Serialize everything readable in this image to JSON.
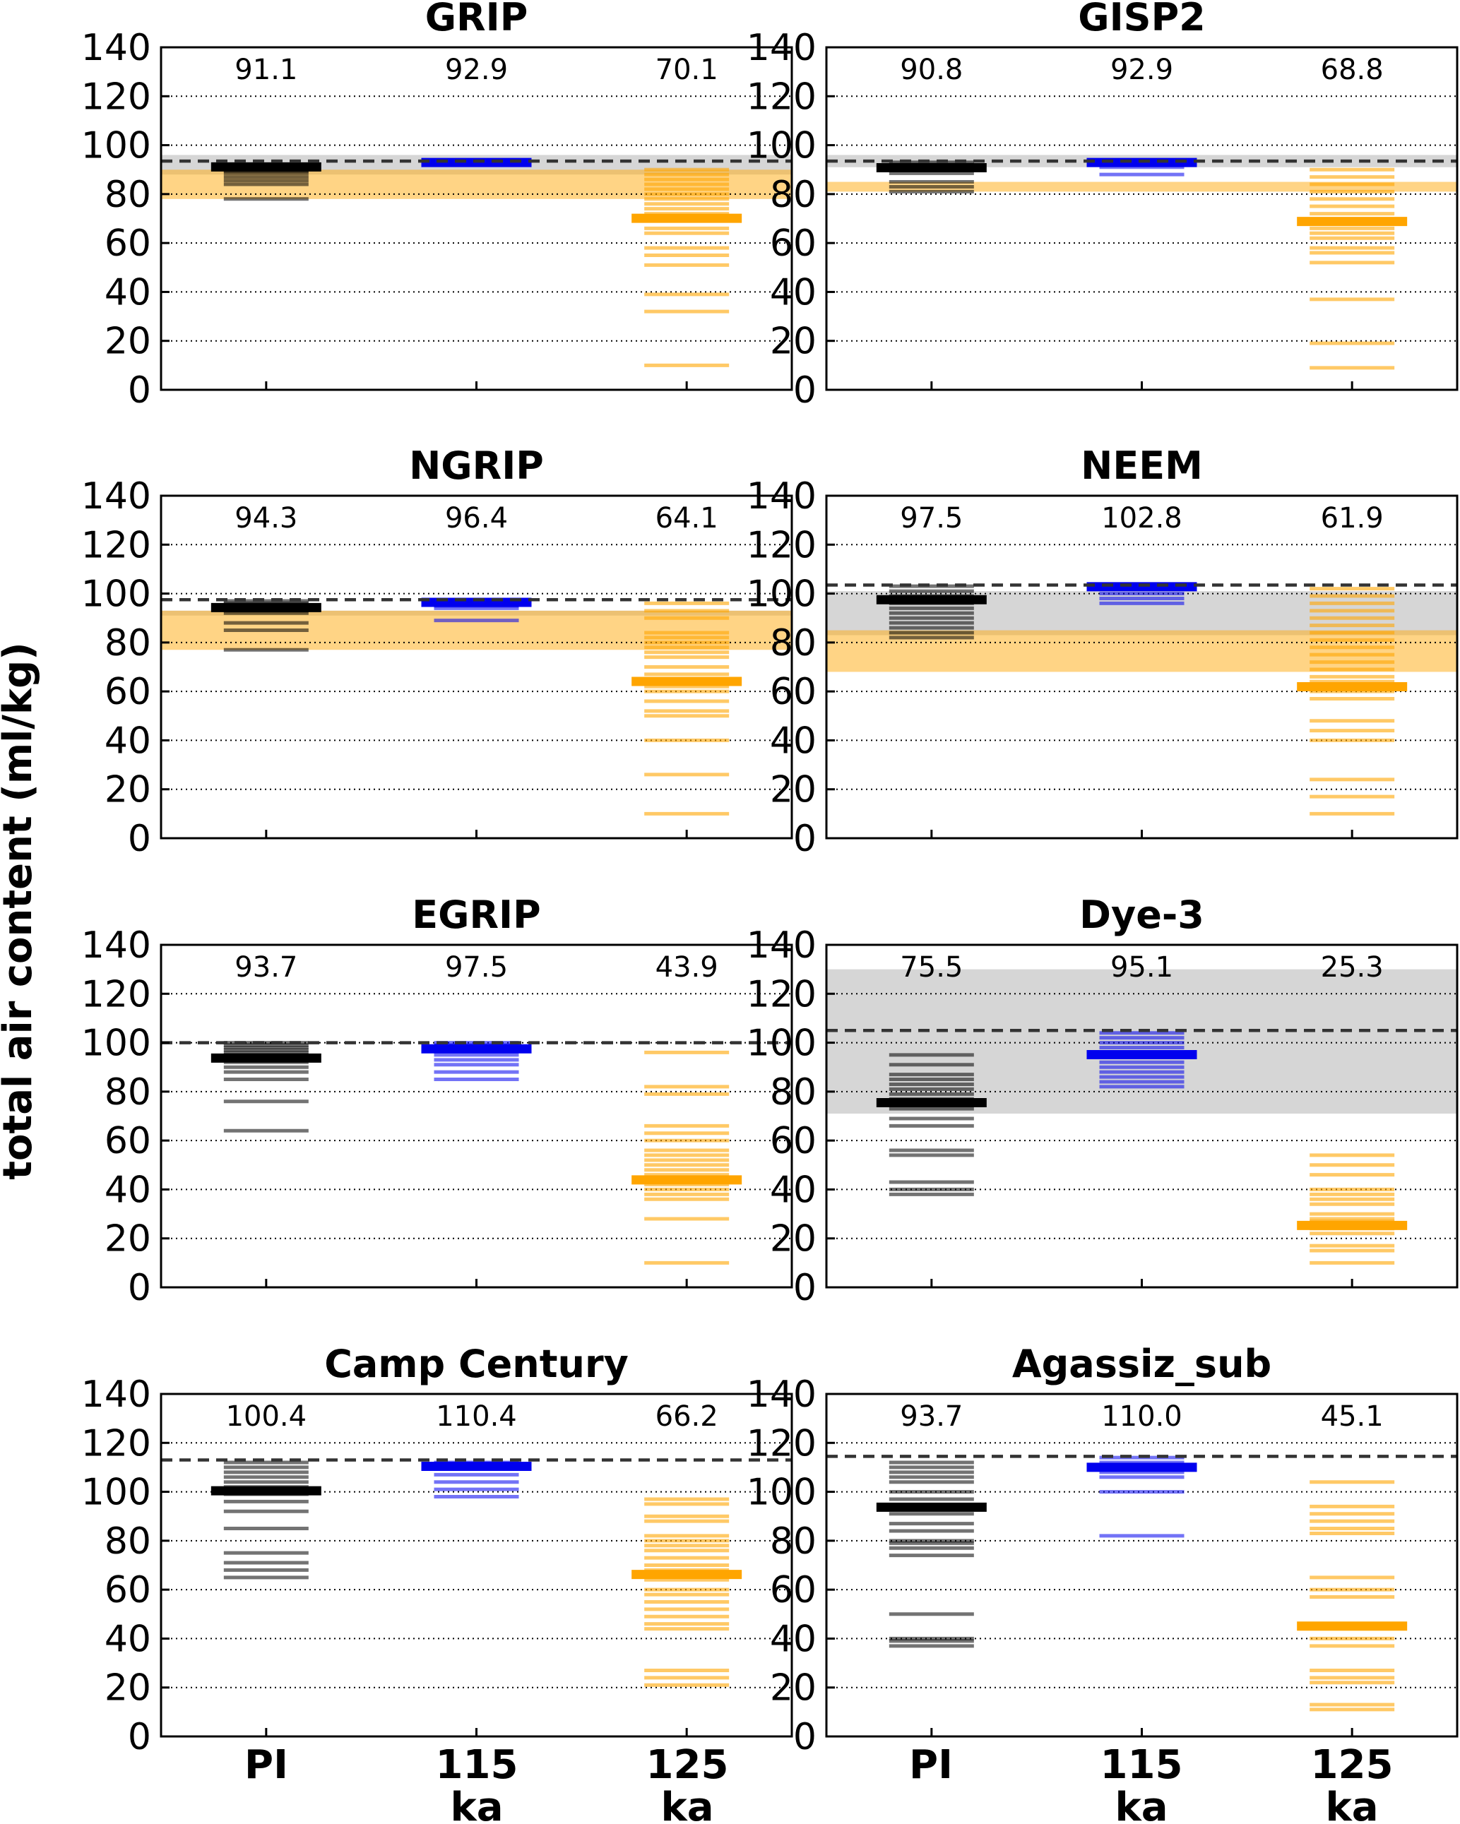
{
  "chart_data": {
    "type": "strip",
    "ylabel": "total air content (ml/kg)",
    "ylim": [
      0,
      140
    ],
    "yticks": [
      0,
      20,
      40,
      60,
      80,
      100,
      120,
      140
    ],
    "gridlines": [
      20,
      40,
      60,
      80,
      100,
      120
    ],
    "categories": [
      {
        "line1": "PI",
        "line2": ""
      },
      {
        "line1": "115",
        "line2": "ka"
      },
      {
        "line1": "125",
        "line2": "ka"
      }
    ],
    "colors": {
      "PI": "#000000",
      "115ka": "#0000ee",
      "125ka": "#ffa500",
      "obs_band": "#b4b4b4",
      "lig_band": "#ffb020"
    },
    "panels": [
      {
        "title": "GRIP",
        "observed": 93.5,
        "obs_band": [
          88,
          96
        ],
        "lig_band": [
          78,
          90
        ],
        "means": [
          91.1,
          92.9,
          70.1
        ],
        "series": [
          {
            "name": "PI",
            "mean": 91.1,
            "members": [
              91.5,
              90.5,
              89.5,
              88.5,
              87,
              85.5,
              84,
              78
            ]
          },
          {
            "name": "115 ka",
            "mean": 92.9,
            "members": [
              93.5,
              93,
              92.5,
              92
            ]
          },
          {
            "name": "125 ka",
            "mean": 70.1,
            "members": [
              90,
              88,
              86,
              84,
              82,
              80,
              78,
              76,
              74,
              72,
              66,
              64,
              58,
              55,
              51,
              39,
              32,
              10
            ]
          }
        ]
      },
      {
        "title": "GISP2",
        "observed": 93.5,
        "obs_band": [
          91,
          96
        ],
        "lig_band": [
          81,
          85
        ],
        "means": [
          90.8,
          92.9,
          68.8
        ],
        "series": [
          {
            "name": "PI",
            "mean": 90.8,
            "members": [
              93,
              92,
              91.5,
              90,
              88.5,
              85,
              83,
              81
            ]
          },
          {
            "name": "115 ka",
            "mean": 92.9,
            "members": [
              93.5,
              93,
              92,
              91,
              88
            ]
          },
          {
            "name": "125 ka",
            "mean": 68.8,
            "members": [
              90,
              87,
              84,
              81,
              78,
              75,
              72,
              66,
              64,
              62,
              58,
              56,
              52,
              37,
              19,
              9
            ]
          }
        ]
      },
      {
        "title": "NGRIP",
        "observed": 97.5,
        "obs_band": [
          91,
          93
        ],
        "lig_band": [
          77,
          93
        ],
        "means": [
          94.3,
          96.4,
          64.1
        ],
        "series": [
          {
            "name": "PI",
            "mean": 94.3,
            "members": [
              97,
              96,
              95,
              93,
              92,
              88,
              85,
              77
            ]
          },
          {
            "name": "115 ka",
            "mean": 96.4,
            "members": [
              97,
              96,
              95,
              94,
              89
            ]
          },
          {
            "name": "125 ka",
            "mean": 64.1,
            "members": [
              96,
              93,
              90,
              84,
              82,
              80,
              78,
              76,
              74,
              70,
              67,
              62,
              60,
              56,
              52,
              50,
              40,
              26,
              10
            ]
          }
        ]
      },
      {
        "title": "NEEM",
        "observed": 103.5,
        "obs_band": [
          83,
          101
        ],
        "lig_band": [
          68,
          85
        ],
        "means": [
          97.5,
          102.8,
          61.9
        ],
        "series": [
          {
            "name": "PI",
            "mean": 97.5,
            "members": [
              103,
              101,
              99,
              96,
              94,
              92,
              90,
              88,
              86,
              84,
              82
            ]
          },
          {
            "name": "115 ka",
            "mean": 102.8,
            "members": [
              103.5,
              102,
              100,
              98,
              96
            ]
          },
          {
            "name": "125 ka",
            "mean": 61.9,
            "members": [
              102,
              99,
              96,
              93,
              90,
              87,
              84,
              81,
              78,
              75,
              72,
              69,
              66,
              64,
              60,
              57,
              48,
              44,
              40,
              24,
              17,
              10
            ]
          }
        ]
      },
      {
        "title": "EGRIP",
        "observed": 100,
        "obs_band": null,
        "lig_band": null,
        "means": [
          93.7,
          97.5,
          43.9
        ],
        "series": [
          {
            "name": "PI",
            "mean": 93.7,
            "members": [
              100,
              99,
              98,
              97,
              96,
              95,
              94,
              92,
              90,
              88,
              85,
              76,
              64
            ]
          },
          {
            "name": "115 ka",
            "mean": 97.5,
            "members": [
              100,
              99,
              98,
              97,
              95,
              93,
              91,
              88,
              85
            ]
          },
          {
            "name": "125 ka",
            "mean": 43.9,
            "members": [
              96,
              82,
              79,
              66,
              63,
              60,
              56,
              54,
              52,
              50,
              48,
              46,
              42,
              40,
              38,
              36,
              28,
              10
            ]
          }
        ]
      },
      {
        "title": "Dye-3",
        "observed": 105,
        "obs_band": [
          71,
          130
        ],
        "lig_band": null,
        "means": [
          75.5,
          95.1,
          25.3
        ],
        "series": [
          {
            "name": "PI",
            "mean": 75.5,
            "members": [
              95,
              91,
              87,
              85,
              83,
              81,
              79,
              77,
              73,
              69,
              66,
              56,
              54,
              43,
              40,
              38
            ]
          },
          {
            "name": "115 ka",
            "mean": 95.1,
            "members": [
              104,
              102,
              100,
              98,
              96,
              94,
              92,
              90,
              88,
              86,
              84,
              82
            ]
          },
          {
            "name": "125 ka",
            "mean": 25.3,
            "members": [
              54,
              50,
              46,
              40,
              38,
              36,
              34,
              30,
              28,
              27,
              24,
              22,
              17,
              15,
              10
            ]
          }
        ]
      },
      {
        "title": "Camp Century",
        "observed": 113,
        "obs_band": null,
        "lig_band": null,
        "means": [
          100.4,
          110.4,
          66.2
        ],
        "series": [
          {
            "name": "PI",
            "mean": 100.4,
            "members": [
              112,
              110,
              108,
              106,
              104,
              102,
              99,
              96,
              92,
              85,
              75,
              71,
              68,
              65
            ]
          },
          {
            "name": "115 ka",
            "mean": 110.4,
            "members": [
              112,
              110,
              107,
              104,
              101,
              98
            ]
          },
          {
            "name": "125 ka",
            "mean": 66.2,
            "members": [
              97,
              95,
              90,
              88,
              82,
              80,
              78,
              76,
              73,
              70,
              68,
              64,
              60,
              58,
              55,
              52,
              49,
              46,
              44,
              27,
              24,
              21
            ]
          }
        ]
      },
      {
        "title": "Agassiz_sub",
        "observed": 114.5,
        "obs_band": null,
        "lig_band": null,
        "means": [
          93.7,
          110.0,
          45.1
        ],
        "series": [
          {
            "name": "PI",
            "mean": 93.7,
            "members": [
              112,
              110,
              108,
              106,
              104,
              100,
              97,
              91,
              87,
              84,
              80,
              79,
              77,
              74,
              50,
              40,
              39,
              37
            ]
          },
          {
            "name": "115 ka",
            "mean": 110.0,
            "members": [
              114,
              112,
              110,
              108,
              106,
              100,
              82
            ]
          },
          {
            "name": "125 ka",
            "mean": 45.1,
            "members": [
              104,
              94,
              91,
              88,
              85,
              83,
              65,
              60,
              57,
              46,
              44,
              40,
              37,
              27,
              24,
              22,
              13,
              11
            ]
          }
        ]
      }
    ]
  }
}
